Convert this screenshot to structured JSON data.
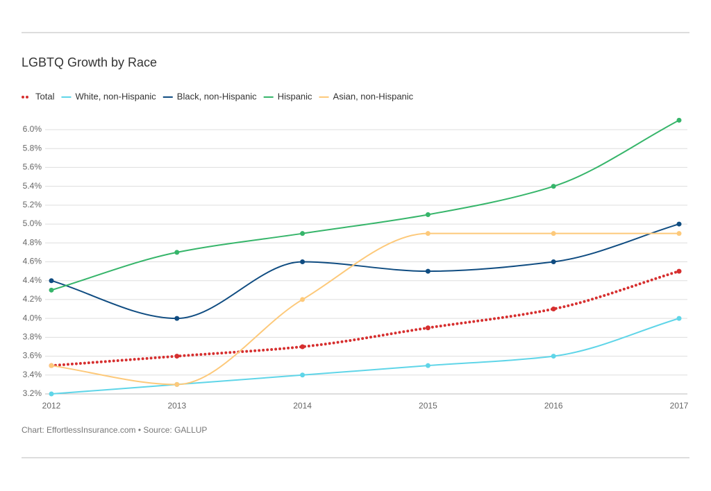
{
  "chart_data": {
    "type": "line",
    "title": "LGBTQ Growth by Race",
    "source": "Chart: EffortlessInsurance.com • Source: GALLUP",
    "categories": [
      "2012",
      "2013",
      "2014",
      "2015",
      "2016",
      "2017"
    ],
    "series": [
      {
        "name": "Total",
        "color": "#d62f2f",
        "style": "dotted",
        "values": [
          3.5,
          3.6,
          3.7,
          3.9,
          4.1,
          4.5
        ]
      },
      {
        "name": "White, non-Hispanic",
        "color": "#5fd5e8",
        "style": "solid",
        "values": [
          3.2,
          3.3,
          3.4,
          3.5,
          3.6,
          4.0
        ]
      },
      {
        "name": "Black, non-Hispanic",
        "color": "#0f4c81",
        "style": "solid",
        "values": [
          4.4,
          4.0,
          4.6,
          4.5,
          4.6,
          5.0
        ]
      },
      {
        "name": "Hispanic",
        "color": "#36b56a",
        "style": "solid",
        "values": [
          4.3,
          4.7,
          4.9,
          5.1,
          5.4,
          6.1
        ]
      },
      {
        "name": "Asian, non-Hispanic",
        "color": "#fdc97a",
        "style": "solid",
        "values": [
          3.5,
          3.3,
          4.2,
          4.9,
          4.9,
          4.9
        ]
      }
    ],
    "ylim": [
      3.2,
      6.1
    ],
    "yticks": [
      {
        "value": 3.2,
        "label": "3.2%"
      },
      {
        "value": 3.4,
        "label": "3.4%"
      },
      {
        "value": 3.6,
        "label": "3.6%"
      },
      {
        "value": 3.8,
        "label": "3.8%"
      },
      {
        "value": 4.0,
        "label": "4.0%"
      },
      {
        "value": 4.2,
        "label": "4.2%"
      },
      {
        "value": 4.4,
        "label": "4.4%"
      },
      {
        "value": 4.6,
        "label": "4.6%"
      },
      {
        "value": 4.8,
        "label": "4.8%"
      },
      {
        "value": 5.0,
        "label": "5.0%"
      },
      {
        "value": 5.2,
        "label": "5.2%"
      },
      {
        "value": 5.4,
        "label": "5.4%"
      },
      {
        "value": 5.6,
        "label": "5.6%"
      },
      {
        "value": 5.8,
        "label": "5.8%"
      },
      {
        "value": 6.0,
        "label": "6.0%"
      }
    ],
    "grid": true,
    "smooth": true
  }
}
